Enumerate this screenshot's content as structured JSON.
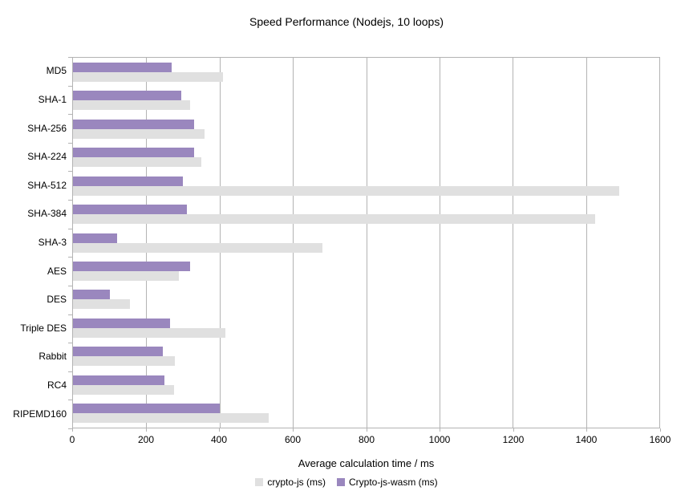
{
  "chart_data": {
    "type": "bar",
    "orientation": "horizontal",
    "title": "Speed Performance (Nodejs, 10 loops)",
    "xlabel": "Average calculation time / ms",
    "xlim": [
      0,
      1600
    ],
    "xticks": [
      0,
      200,
      400,
      600,
      800,
      1000,
      1200,
      1400,
      1600
    ],
    "grid": true,
    "legend_position": "bottom",
    "categories": [
      "MD5",
      "SHA-1",
      "SHA-256",
      "SHA-224",
      "SHA-512",
      "SHA-384",
      "SHA-3",
      "AES",
      "DES",
      "Triple DES",
      "Rabbit",
      "RC4",
      "RIPEMD160"
    ],
    "series": [
      {
        "name": "crypto-js (ms)",
        "color": "#e0e0e0",
        "values": [
          410,
          320,
          360,
          350,
          1490,
          1425,
          680,
          290,
          155,
          415,
          278,
          275,
          535
        ]
      },
      {
        "name": "Crypto-js-wasm (ms)",
        "color": "#9a87be",
        "values": [
          270,
          295,
          330,
          330,
          300,
          310,
          120,
          320,
          100,
          265,
          245,
          250,
          400
        ]
      }
    ]
  }
}
